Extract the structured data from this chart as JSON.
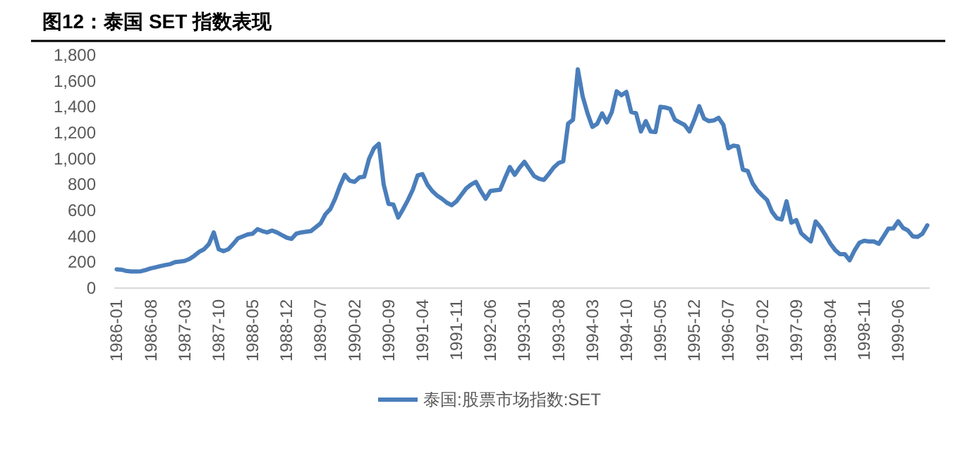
{
  "chart_data": {
    "type": "line",
    "title": "图12：泰国 SET 指数表现",
    "categories": [
      "1986-01",
      null,
      null,
      null,
      null,
      null,
      null,
      "1986-08",
      null,
      null,
      null,
      null,
      null,
      null,
      "1987-03",
      null,
      null,
      null,
      null,
      null,
      null,
      "1987-10",
      null,
      null,
      null,
      null,
      null,
      null,
      "1988-05",
      null,
      null,
      null,
      null,
      null,
      null,
      "1988-12",
      null,
      null,
      null,
      null,
      null,
      null,
      "1989-07",
      null,
      null,
      null,
      null,
      null,
      null,
      "1990-02",
      null,
      null,
      null,
      null,
      null,
      null,
      "1990-09",
      null,
      null,
      null,
      null,
      null,
      null,
      "1991-04",
      null,
      null,
      null,
      null,
      null,
      null,
      "1991-11",
      null,
      null,
      null,
      null,
      null,
      null,
      "1992-06",
      null,
      null,
      null,
      null,
      null,
      null,
      "1993-01",
      null,
      null,
      null,
      null,
      null,
      null,
      "1993-08",
      null,
      null,
      null,
      null,
      null,
      null,
      "1994-03",
      null,
      null,
      null,
      null,
      null,
      null,
      "1994-10",
      null,
      null,
      null,
      null,
      null,
      null,
      "1995-05",
      null,
      null,
      null,
      null,
      null,
      null,
      "1995-12",
      null,
      null,
      null,
      null,
      null,
      null,
      "1996-07",
      null,
      null,
      null,
      null,
      null,
      null,
      "1997-02",
      null,
      null,
      null,
      null,
      null,
      null,
      "1997-09",
      null,
      null,
      null,
      null,
      null,
      null,
      "1998-04",
      null,
      null,
      null,
      null,
      null,
      null,
      "1998-11",
      null,
      null,
      null,
      null,
      null,
      null,
      "1999-06",
      null,
      null,
      null,
      null,
      null,
      null
    ],
    "series": [
      {
        "name": "泰国:股票市场指数:SET",
        "color": "#4a7ebb",
        "values": [
          145,
          142,
          132,
          128,
          128,
          130,
          140,
          152,
          160,
          170,
          178,
          185,
          200,
          205,
          210,
          225,
          250,
          280,
          300,
          340,
          430,
          300,
          285,
          300,
          340,
          385,
          400,
          415,
          420,
          455,
          440,
          430,
          445,
          430,
          410,
          390,
          380,
          420,
          430,
          435,
          440,
          470,
          500,
          570,
          610,
          690,
          790,
          875,
          830,
          820,
          855,
          860,
          1000,
          1080,
          1115,
          800,
          650,
          645,
          545,
          610,
          680,
          760,
          870,
          880,
          800,
          750,
          715,
          690,
          660,
          640,
          670,
          720,
          770,
          800,
          820,
          750,
          690,
          750,
          755,
          760,
          850,
          935,
          875,
          930,
          975,
          920,
          865,
          845,
          835,
          880,
          930,
          965,
          980,
          1270,
          1300,
          1690,
          1480,
          1350,
          1245,
          1270,
          1350,
          1280,
          1360,
          1520,
          1490,
          1515,
          1360,
          1350,
          1210,
          1290,
          1210,
          1205,
          1400,
          1395,
          1385,
          1300,
          1280,
          1260,
          1210,
          1300,
          1405,
          1310,
          1290,
          1295,
          1315,
          1260,
          1080,
          1100,
          1095,
          915,
          905,
          810,
          755,
          715,
          680,
          590,
          540,
          530,
          670,
          505,
          525,
          425,
          390,
          360,
          515,
          470,
          410,
          345,
          295,
          262,
          262,
          214,
          290,
          350,
          365,
          360,
          360,
          342,
          400,
          460,
          461,
          516,
          465,
          445,
          400,
          395,
          420,
          485
        ]
      }
    ],
    "ylim": [
      0,
      1800
    ],
    "yticks": [
      0,
      200,
      400,
      600,
      800,
      {
        "value": 1000,
        "label": "1,000"
      },
      {
        "value": 1200,
        "label": "1,200"
      },
      {
        "value": 1400,
        "label": "1,400"
      },
      {
        "value": 1600,
        "label": "1,600"
      },
      {
        "value": 1800,
        "label": "1,800"
      }
    ],
    "grid": false,
    "legend": "bottom"
  }
}
